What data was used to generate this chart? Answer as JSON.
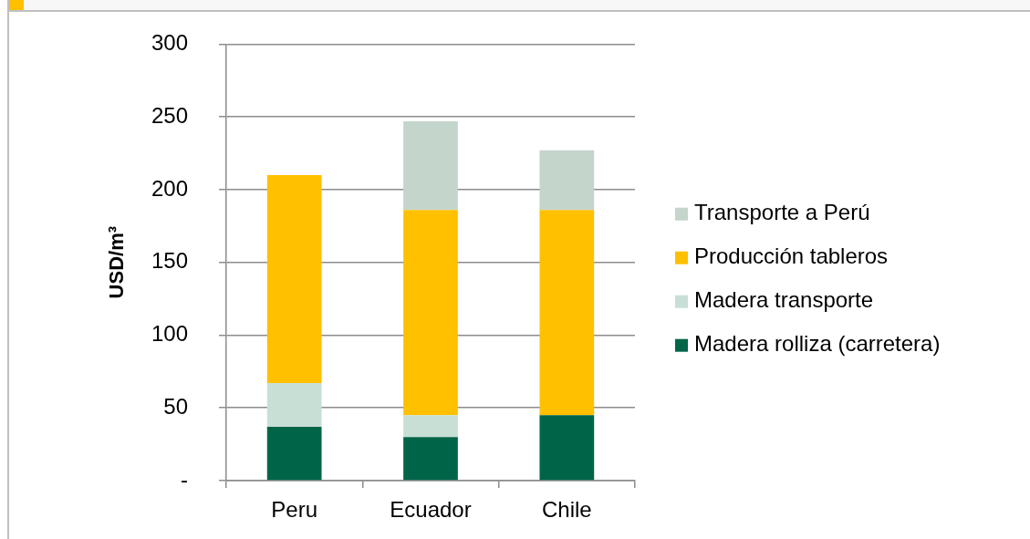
{
  "chart_data": {
    "type": "bar",
    "stacked": true,
    "ylabel": "USD/m³",
    "categories": [
      "Peru",
      "Ecuador",
      "Chile"
    ],
    "series": [
      {
        "name": "Madera rolliza (carretera)",
        "color": "#006548",
        "values": [
          37,
          30,
          45
        ]
      },
      {
        "name": "Madera transporte",
        "color": "#c8dfd6",
        "values": [
          30,
          15,
          null
        ]
      },
      {
        "name": "Producción tableros",
        "color": "#ffc000",
        "values": [
          143,
          141,
          141
        ]
      },
      {
        "name": "Transporte a Perú",
        "color": "#c4d5cc",
        "values": [
          null,
          61,
          41
        ]
      }
    ],
    "ylim": [
      0,
      300
    ],
    "yticks": [
      {
        "value": 0,
        "label": "-"
      },
      50,
      100,
      150,
      200,
      250,
      300
    ],
    "grid": "y",
    "legend": "right"
  }
}
